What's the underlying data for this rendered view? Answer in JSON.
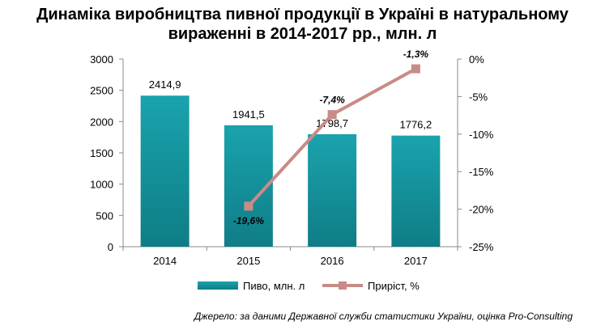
{
  "title": {
    "line1": "Динаміка виробництва пивної продукції в Україні в натуральному",
    "line2": "вираженні в 2014-2017 рр., млн. л"
  },
  "source": "Джерело: за даними Державної служби статистики України, оцінка Pro-Consulting",
  "colors": {
    "bar": "#1aa3ad",
    "bar_dark": "#0f7d86",
    "line": "#c98b87",
    "axis": "#888888"
  },
  "chart_data": {
    "type": "bar",
    "categories": [
      "2014",
      "2015",
      "2016",
      "2017"
    ],
    "series": [
      {
        "name": "Пиво, млн. л",
        "type": "bar",
        "axis": "left",
        "values": [
          2414.9,
          1941.5,
          1798.7,
          1776.2
        ],
        "labels": [
          "2414,9",
          "1941,5",
          "1798,7",
          "1776,2"
        ]
      },
      {
        "name": "Приріст, %",
        "type": "line",
        "axis": "right",
        "values": [
          null,
          -19.6,
          -7.4,
          -1.3
        ],
        "labels": [
          "",
          "-19,6%",
          "-7,4%",
          "-1,3%"
        ]
      }
    ],
    "y_left": {
      "min": 0,
      "max": 3000,
      "ticks": [
        "0",
        "500",
        "1000",
        "1500",
        "2000",
        "2500",
        "3000"
      ]
    },
    "y_right": {
      "min": -25,
      "max": 0,
      "ticks": [
        "-25%",
        "-20%",
        "-15%",
        "-10%",
        "-5%",
        "0%"
      ]
    },
    "legend_position": "bottom",
    "grid": false
  }
}
